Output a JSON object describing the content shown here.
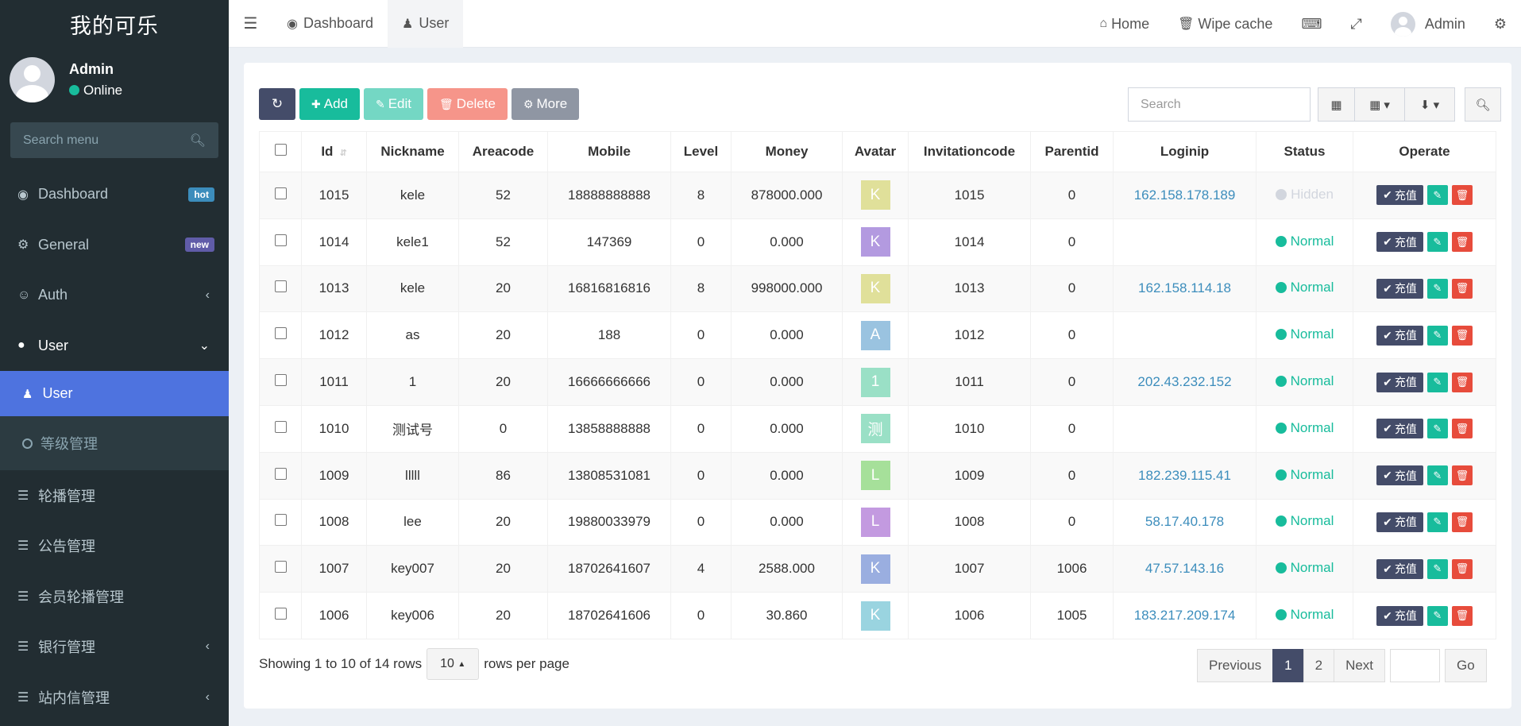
{
  "brand": "我的可乐",
  "user": {
    "name": "Admin",
    "status": "Online"
  },
  "sidebar": {
    "search_placeholder": "Search menu",
    "items": [
      {
        "label": "Dashboard",
        "badge": "hot"
      },
      {
        "label": "General",
        "badge": "new"
      },
      {
        "label": "Auth"
      },
      {
        "label": "User"
      }
    ],
    "sub_items": [
      {
        "label": "User"
      },
      {
        "label": "等级管理"
      }
    ],
    "more_items": [
      {
        "label": "轮播管理"
      },
      {
        "label": "公告管理"
      },
      {
        "label": "会员轮播管理"
      },
      {
        "label": "银行管理"
      },
      {
        "label": "站内信管理"
      }
    ]
  },
  "topbar": {
    "tabs": [
      {
        "label": "Dashboard"
      },
      {
        "label": "User"
      }
    ],
    "home": "Home",
    "wipe_cache": "Wipe cache",
    "admin": "Admin"
  },
  "toolbar": {
    "add": "Add",
    "edit": "Edit",
    "delete": "Delete",
    "more": "More",
    "search_placeholder": "Search"
  },
  "table": {
    "headers": [
      "Id",
      "Nickname",
      "Areacode",
      "Mobile",
      "Level",
      "Money",
      "Avatar",
      "Invitationcode",
      "Parentid",
      "Loginip",
      "Status",
      "Operate"
    ],
    "recharge_label": "充值",
    "rows": [
      {
        "id": "1015",
        "nickname": "kele",
        "areacode": "52",
        "mobile": "18888888888",
        "level": "8",
        "money": "878000.000",
        "avatar": "K",
        "avatar_color": "#e0e09a",
        "invitation": "1015",
        "parentid": "0",
        "loginip": "162.158.178.189",
        "status": "Hidden"
      },
      {
        "id": "1014",
        "nickname": "kele1",
        "areacode": "52",
        "mobile": "147369",
        "level": "0",
        "money": "0.000",
        "avatar": "K",
        "avatar_color": "#b39ae0",
        "invitation": "1014",
        "parentid": "0",
        "loginip": "",
        "status": "Normal"
      },
      {
        "id": "1013",
        "nickname": "kele",
        "areacode": "20",
        "mobile": "16816816816",
        "level": "8",
        "money": "998000.000",
        "avatar": "K",
        "avatar_color": "#e0e09a",
        "invitation": "1013",
        "parentid": "0",
        "loginip": "162.158.114.18",
        "status": "Normal"
      },
      {
        "id": "1012",
        "nickname": "as",
        "areacode": "20",
        "mobile": "188",
        "level": "0",
        "money": "0.000",
        "avatar": "A",
        "avatar_color": "#9ac3e0",
        "invitation": "1012",
        "parentid": "0",
        "loginip": "",
        "status": "Normal"
      },
      {
        "id": "1011",
        "nickname": "1",
        "areacode": "20",
        "mobile": "16666666666",
        "level": "0",
        "money": "0.000",
        "avatar": "1",
        "avatar_color": "#9ae0c6",
        "invitation": "1011",
        "parentid": "0",
        "loginip": "202.43.232.152",
        "status": "Normal"
      },
      {
        "id": "1010",
        "nickname": "测试号",
        "areacode": "0",
        "mobile": "13858888888",
        "level": "0",
        "money": "0.000",
        "avatar": "测",
        "avatar_color": "#9ae0c6",
        "invitation": "1010",
        "parentid": "0",
        "loginip": "",
        "status": "Normal"
      },
      {
        "id": "1009",
        "nickname": "lllll",
        "areacode": "86",
        "mobile": "13808531081",
        "level": "0",
        "money": "0.000",
        "avatar": "L",
        "avatar_color": "#a6e09a",
        "invitation": "1009",
        "parentid": "0",
        "loginip": "182.239.115.41",
        "status": "Normal"
      },
      {
        "id": "1008",
        "nickname": "lee",
        "areacode": "20",
        "mobile": "19880033979",
        "level": "0",
        "money": "0.000",
        "avatar": "L",
        "avatar_color": "#c39ae0",
        "invitation": "1008",
        "parentid": "0",
        "loginip": "58.17.40.178",
        "status": "Normal"
      },
      {
        "id": "1007",
        "nickname": "key007",
        "areacode": "20",
        "mobile": "18702641607",
        "level": "4",
        "money": "2588.000",
        "avatar": "K",
        "avatar_color": "#9aaee0",
        "invitation": "1007",
        "parentid": "1006",
        "loginip": "47.57.143.16",
        "status": "Normal"
      },
      {
        "id": "1006",
        "nickname": "key006",
        "areacode": "20",
        "mobile": "18702641606",
        "level": "0",
        "money": "30.860",
        "avatar": "K",
        "avatar_color": "#9ad4e0",
        "invitation": "1006",
        "parentid": "1005",
        "loginip": "183.217.209.174",
        "status": "Normal"
      }
    ]
  },
  "footer": {
    "showing": "Showing 1 to 10 of 14 rows",
    "page_size": "10",
    "rows_per_page": "rows per page",
    "previous": "Previous",
    "pages": [
      "1",
      "2"
    ],
    "next": "Next",
    "go": "Go"
  },
  "colors": {
    "sidebar_bg": "#222d32",
    "primary": "#444c69",
    "success": "#18bc9c",
    "danger": "#e74c3c",
    "active_menu": "#4e73df"
  }
}
